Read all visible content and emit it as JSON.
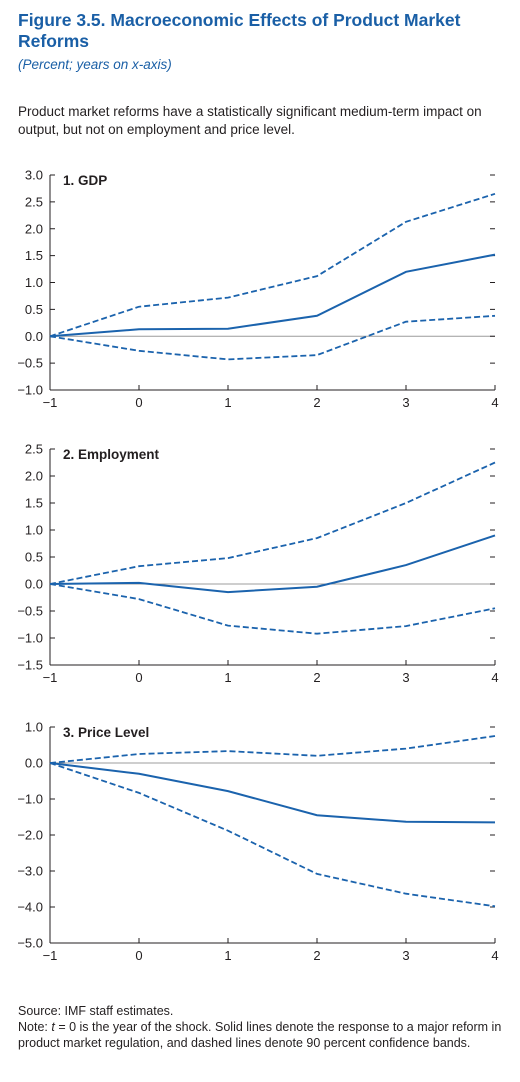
{
  "figure": {
    "title": "Figure 3.5.  Macroeconomic Effects of Product Market Reforms",
    "subtitle": "(Percent; years on x-axis)",
    "description": "Product market reforms have a statistically significant medium-term impact on output, but not on employment and price level."
  },
  "footer": {
    "source": "Source: IMF staff estimates.",
    "note_prefix": "Note: ",
    "note_t": "t",
    "note_text": " = 0 is the year of the shock. Solid lines denote the response to a major reform in product market regulation, and dashed lines denote 90 percent confidence bands."
  },
  "colors": {
    "series": "#1b63ad",
    "axis": "#231f20",
    "zero_line": "#9c9c9c",
    "title": "#1a5fa6"
  },
  "chart_data": [
    {
      "type": "line",
      "title": "1. GDP",
      "x": [
        -1,
        0,
        1,
        2,
        3,
        4
      ],
      "xticks": [
        "−1",
        "0",
        "1",
        "2",
        "3",
        "4"
      ],
      "ylim": [
        -1.0,
        3.0
      ],
      "yticks": [
        3.0,
        2.5,
        2.0,
        1.5,
        1.0,
        0.5,
        0.0,
        -0.5,
        -1.0
      ],
      "ytick_labels": [
        "3.0",
        "2.5",
        "2.0",
        "1.5",
        "1.0",
        "0.5",
        "0.0",
        "−0.5",
        "−1.0"
      ],
      "series": [
        {
          "style": "solid",
          "values": [
            0,
            0.13,
            0.14,
            0.38,
            1.2,
            1.52
          ]
        },
        {
          "style": "dashed",
          "values": [
            0,
            0.55,
            0.72,
            1.12,
            2.13,
            2.65
          ]
        },
        {
          "style": "dashed",
          "values": [
            0,
            -0.27,
            -0.43,
            -0.35,
            0.27,
            0.38
          ]
        }
      ]
    },
    {
      "type": "line",
      "title": "2. Employment",
      "x": [
        -1,
        0,
        1,
        2,
        3,
        4
      ],
      "xticks": [
        "−1",
        "0",
        "1",
        "2",
        "3",
        "4"
      ],
      "ylim": [
        -1.5,
        2.5
      ],
      "yticks": [
        2.5,
        2.0,
        1.5,
        1.0,
        0.5,
        0.0,
        -0.5,
        -1.0,
        -1.5
      ],
      "ytick_labels": [
        "2.5",
        "2.0",
        "1.5",
        "1.0",
        "0.5",
        "0.0",
        "−0.5",
        "−1.0",
        "−1.5"
      ],
      "series": [
        {
          "style": "solid",
          "values": [
            0,
            0.02,
            -0.15,
            -0.05,
            0.35,
            0.9
          ]
        },
        {
          "style": "dashed",
          "values": [
            0,
            0.33,
            0.48,
            0.85,
            1.5,
            2.25
          ]
        },
        {
          "style": "dashed",
          "values": [
            0,
            -0.28,
            -0.77,
            -0.92,
            -0.78,
            -0.45
          ]
        }
      ]
    },
    {
      "type": "line",
      "title": "3. Price Level",
      "x": [
        -1,
        0,
        1,
        2,
        3,
        4
      ],
      "xticks": [
        "−1",
        "0",
        "1",
        "2",
        "3",
        "4"
      ],
      "ylim": [
        -5.0,
        1.0
      ],
      "yticks": [
        1.0,
        0.0,
        -1.0,
        -2.0,
        -3.0,
        -4.0,
        -5.0
      ],
      "ytick_labels": [
        "1.0",
        "0.0",
        "−1.0",
        "−2.0",
        "−3.0",
        "−4.0",
        "−5.0"
      ],
      "series": [
        {
          "style": "solid",
          "values": [
            0,
            -0.3,
            -0.78,
            -1.45,
            -1.63,
            -1.65
          ]
        },
        {
          "style": "dashed",
          "values": [
            0,
            0.25,
            0.33,
            0.2,
            0.4,
            0.75
          ]
        },
        {
          "style": "dashed",
          "values": [
            0,
            -0.83,
            -1.88,
            -3.08,
            -3.63,
            -3.98
          ]
        }
      ]
    }
  ]
}
